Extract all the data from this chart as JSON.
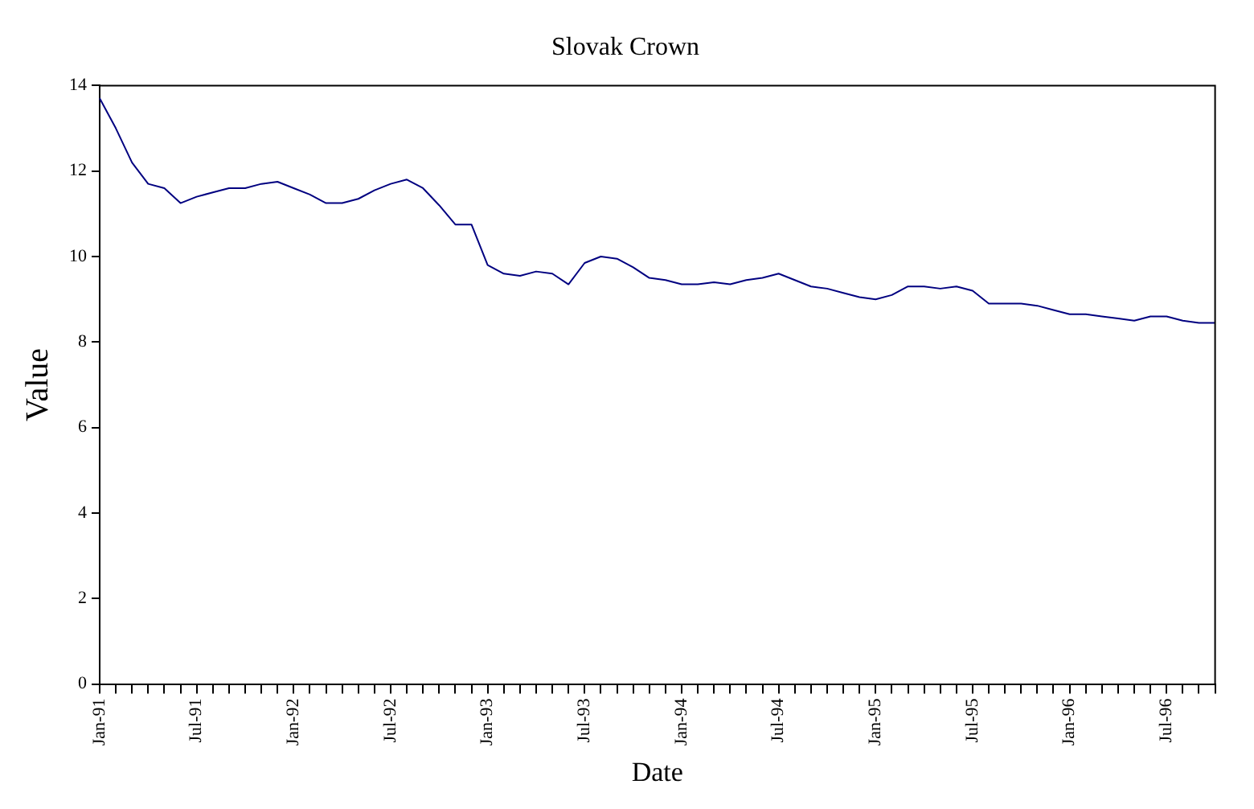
{
  "chart_data": {
    "type": "line",
    "title": "Slovak Crown",
    "xlabel": "Date",
    "ylabel": "Value",
    "categories": [
      "Jan-91",
      null,
      null,
      null,
      null,
      null,
      "Jul-91",
      null,
      null,
      null,
      null,
      null,
      "Jan-92",
      null,
      null,
      null,
      null,
      null,
      "Jul-92",
      null,
      null,
      null,
      null,
      null,
      "Jan-93",
      null,
      null,
      null,
      null,
      null,
      "Jul-93",
      null,
      null,
      null,
      null,
      null,
      "Jan-94",
      null,
      null,
      null,
      null,
      null,
      "Jul-94",
      null,
      null,
      null,
      null,
      null,
      "Jan-95",
      null,
      null,
      null,
      null,
      null,
      "Jul-95",
      null,
      null,
      null,
      null,
      null,
      "Jan-96",
      null,
      null,
      null,
      null,
      null,
      "Jul-96",
      null,
      null,
      null
    ],
    "series": [
      {
        "color": "#000080",
        "values": [
          13.7,
          13.0,
          12.2,
          11.7,
          11.6,
          11.25,
          11.4,
          11.5,
          11.6,
          11.6,
          11.7,
          11.75,
          11.6,
          11.45,
          11.25,
          11.25,
          11.35,
          11.55,
          11.7,
          11.8,
          11.6,
          11.2,
          10.75,
          10.75,
          9.8,
          9.6,
          9.55,
          9.65,
          9.6,
          9.35,
          9.85,
          10.0,
          9.95,
          9.75,
          9.5,
          9.45,
          9.35,
          9.35,
          9.4,
          9.35,
          9.45,
          9.5,
          9.6,
          9.45,
          9.3,
          9.25,
          9.15,
          9.05,
          9.0,
          9.1,
          9.3,
          9.3,
          9.25,
          9.3,
          9.2,
          8.9,
          8.9,
          8.9,
          8.85,
          8.75,
          8.65,
          8.65,
          8.6,
          8.55,
          8.5,
          8.6,
          8.6,
          8.5,
          8.45,
          8.45
        ]
      }
    ],
    "ylim": [
      0,
      14
    ],
    "yticks": [
      0,
      2,
      4,
      6,
      8,
      10,
      12,
      14
    ],
    "grid": false,
    "legend": false,
    "marker": "none",
    "line_style": "solid"
  }
}
